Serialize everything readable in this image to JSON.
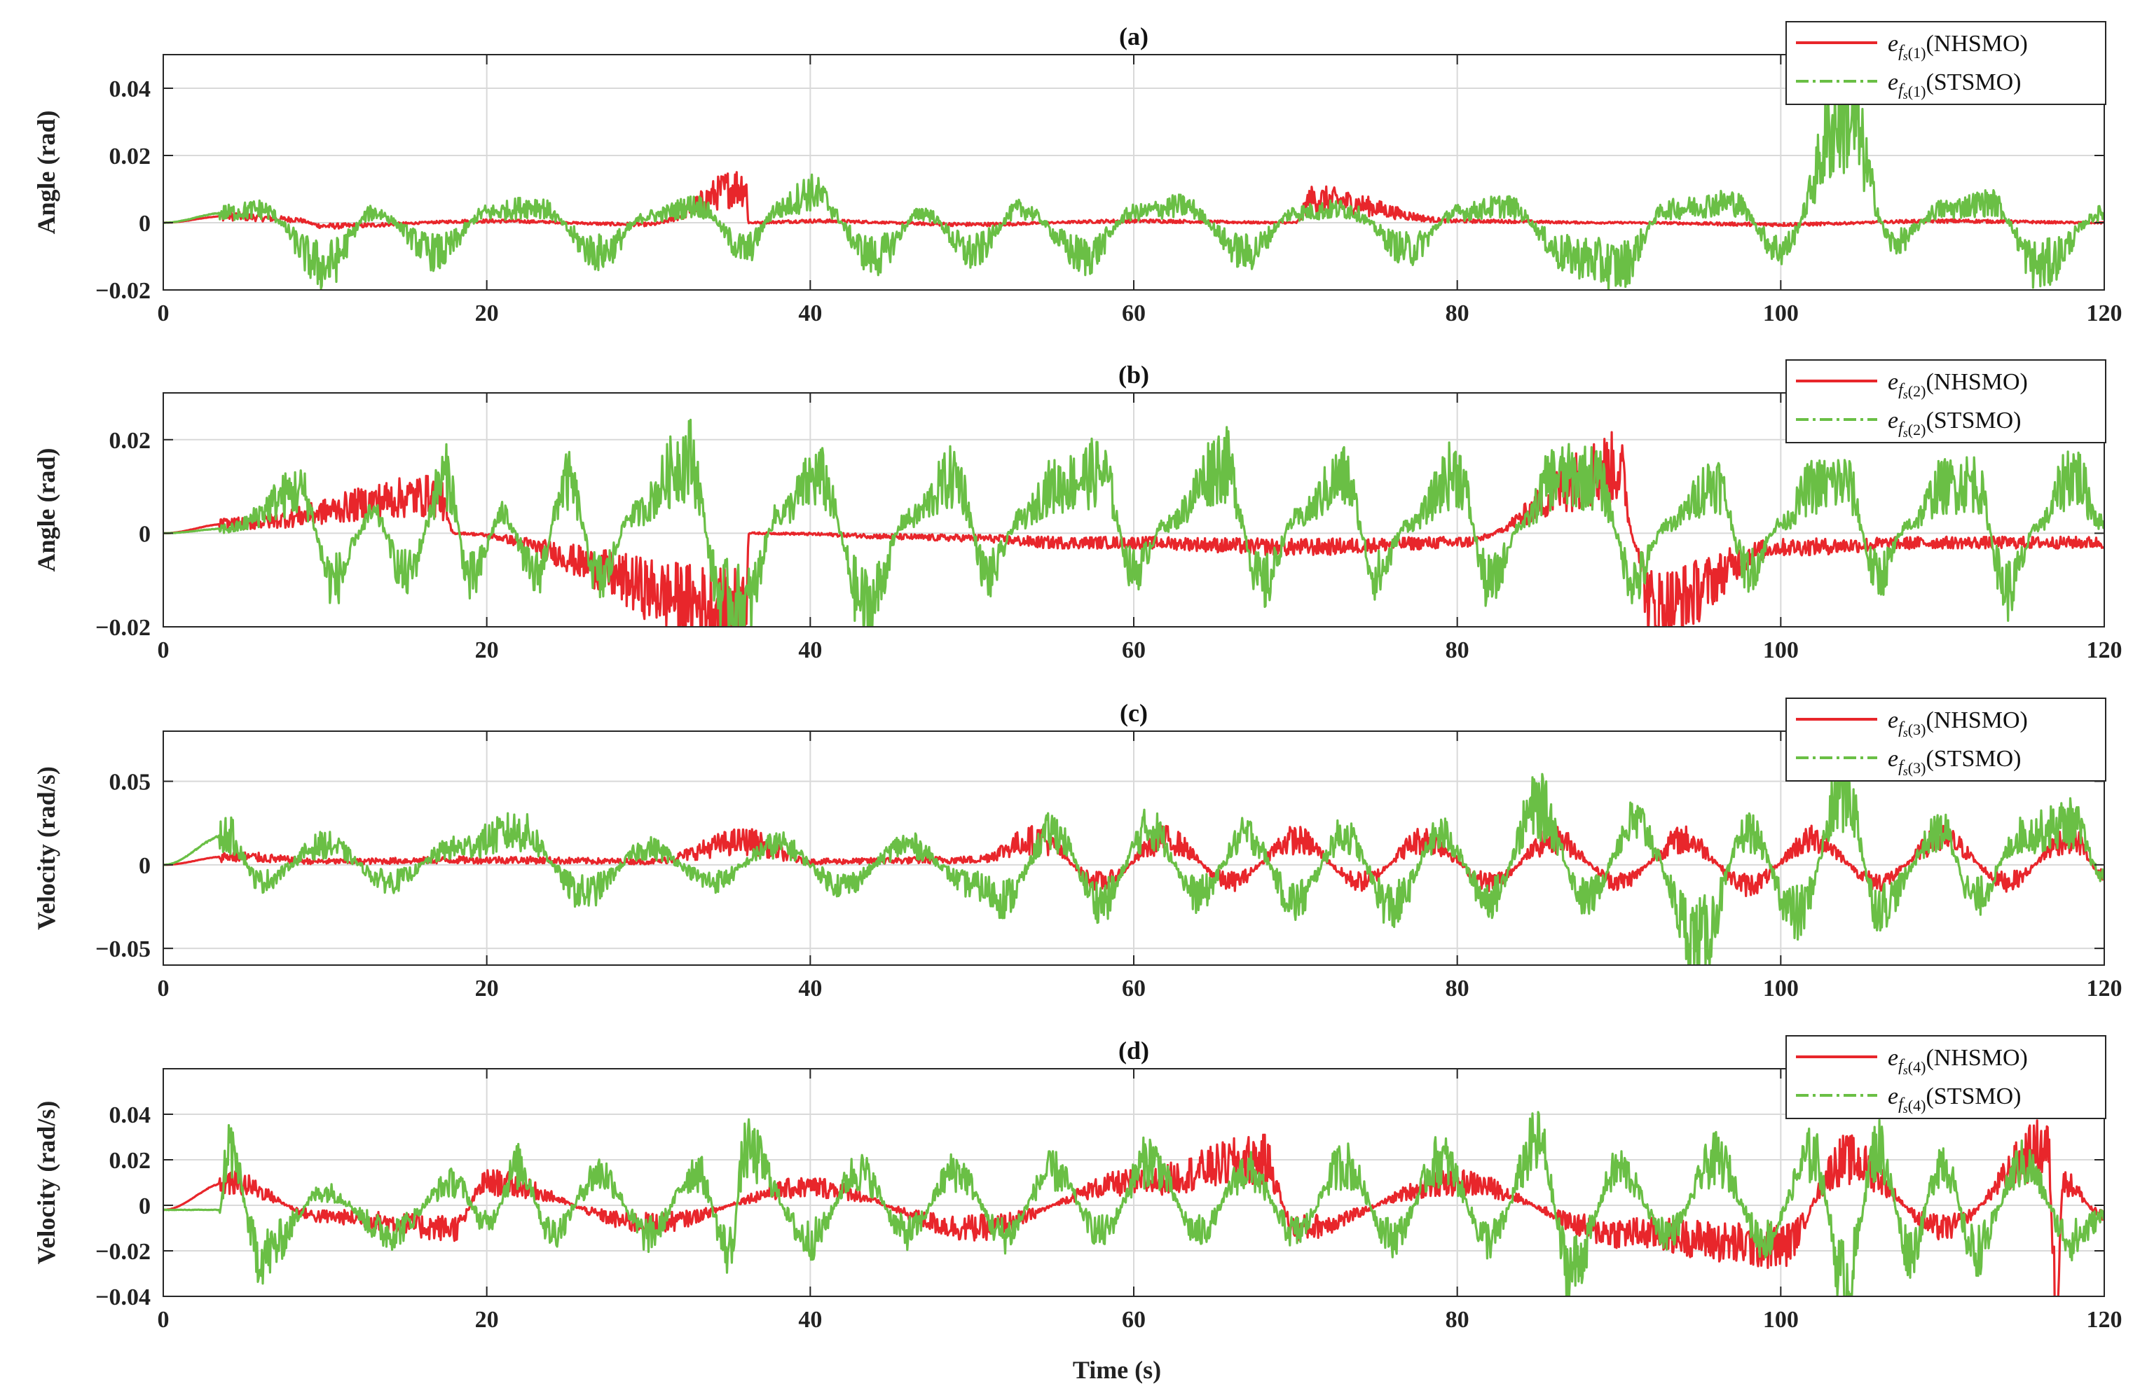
{
  "figure": {
    "xlabel": "Time (s)",
    "colors": {
      "nhsmo": "#e8262b",
      "stsmo": "#6abf45"
    }
  },
  "chart_data": [
    {
      "type": "line",
      "title": "(a)",
      "ylabel": "Angle (rad)",
      "xlabel": "",
      "xlim": [
        0,
        120
      ],
      "ylim": [
        -0.02,
        0.05
      ],
      "xticks": [
        "0",
        "20",
        "40",
        "60",
        "80",
        "100",
        "120"
      ],
      "yticks": [
        "0.04",
        "0.02",
        "0",
        "−0.02"
      ],
      "ytick_values": [
        0.04,
        0.02,
        0,
        -0.02
      ],
      "grid": true,
      "legend_position": "top-right",
      "legend": [
        {
          "base": "e",
          "sub": "f",
          "subsub": "s",
          "idx": "(1)",
          "label": "(NHSMO)"
        },
        {
          "base": "e",
          "sub": "f",
          "subsub": "s",
          "idx": "(1)",
          "label": "(STSMO)"
        }
      ],
      "series": [
        {
          "name": "NHSMO",
          "x": [
            0,
            4,
            8,
            10,
            20,
            30,
            36,
            36.2,
            40,
            50,
            60,
            70,
            71,
            80,
            90,
            100,
            110,
            120
          ],
          "values": [
            0,
            0.002,
            0.001,
            -0.001,
            0.0005,
            -0.0005,
            0.011,
            0,
            0.0005,
            -0.0005,
            0.0005,
            0,
            0.007,
            0.0005,
            0,
            -0.0005,
            0.0005,
            0
          ]
        },
        {
          "name": "STSMO",
          "x": [
            0,
            4,
            6,
            10,
            13,
            17,
            20,
            23,
            27,
            30,
            33,
            36,
            38,
            40,
            44,
            47,
            50,
            53,
            57,
            60,
            63,
            67,
            70,
            73,
            77,
            80,
            83,
            87,
            90,
            93,
            97,
            100,
            104,
            107,
            110,
            113,
            116,
            120
          ],
          "values": [
            0,
            0.003,
            0.004,
            -0.013,
            0.003,
            -0.009,
            0.003,
            0.005,
            -0.009,
            0.002,
            0.005,
            -0.008,
            0.004,
            0.009,
            -0.01,
            0.003,
            -0.009,
            0.004,
            -0.01,
            0.003,
            0.005,
            -0.009,
            0.003,
            0.004,
            -0.008,
            0.003,
            0.005,
            -0.01,
            -0.013,
            0.004,
            0.006,
            -0.008,
            0.032,
            -0.006,
            0.004,
            0.006,
            -0.013,
            0.003
          ]
        }
      ]
    },
    {
      "type": "line",
      "title": "(b)",
      "ylabel": "Angle (rad)",
      "xlabel": "",
      "xlim": [
        0,
        120
      ],
      "ylim": [
        -0.02,
        0.03
      ],
      "xticks": [
        "0",
        "20",
        "40",
        "60",
        "80",
        "100",
        "120"
      ],
      "yticks": [
        "0.02",
        "0",
        "−0.02"
      ],
      "ytick_values": [
        0.02,
        0,
        -0.02
      ],
      "grid": true,
      "legend_position": "top-right",
      "legend": [
        {
          "base": "e",
          "sub": "f",
          "subsub": "s",
          "idx": "(2)",
          "label": "(NHSMO)"
        },
        {
          "base": "e",
          "sub": "f",
          "subsub": "s",
          "idx": "(2)",
          "label": "(STSMO)"
        }
      ],
      "series": [
        {
          "name": "NHSMO",
          "x": [
            0,
            4,
            17,
            18,
            36,
            36.2,
            50,
            55,
            60,
            70,
            80,
            90,
            91,
            92,
            100,
            110,
            120
          ],
          "values": [
            0,
            0.002,
            0.008,
            0,
            -0.016,
            0,
            -0.001,
            -0.002,
            -0.002,
            -0.003,
            -0.002,
            0.014,
            -0.002,
            -0.016,
            -0.003,
            -0.002,
            -0.002
          ]
        },
        {
          "name": "STSMO",
          "x": [
            0,
            4,
            8.5,
            10.5,
            13,
            15,
            17.5,
            19,
            21,
            23,
            25,
            27,
            29,
            32.5,
            34.5,
            36,
            38,
            40.5,
            43.5,
            46,
            49,
            51,
            53,
            55,
            58,
            60,
            62,
            65.5,
            68,
            70,
            73,
            75,
            77,
            80,
            82,
            84,
            86,
            88.5,
            91,
            93,
            96,
            98,
            100,
            102,
            104,
            106,
            108,
            110,
            112,
            114,
            116,
            118,
            120
          ],
          "values": [
            0,
            0.001,
            0.009,
            -0.01,
            0.004,
            -0.009,
            0.012,
            -0.01,
            0.004,
            -0.009,
            0.011,
            -0.01,
            0.004,
            0.016,
            -0.013,
            -0.016,
            0.004,
            0.012,
            -0.016,
            0.003,
            0.012,
            -0.009,
            0.003,
            0.01,
            0.013,
            -0.008,
            0.002,
            0.015,
            -0.011,
            0.003,
            0.012,
            -0.009,
            0.002,
            0.013,
            -0.011,
            0.002,
            0.012,
            0.012,
            -0.01,
            0.002,
            0.011,
            -0.008,
            0.002,
            0.01,
            0.011,
            -0.009,
            0.002,
            0.01,
            0.011,
            -0.012,
            0.002,
            0.013,
            0.002
          ]
        }
      ]
    },
    {
      "type": "line",
      "title": "(c)",
      "ylabel": "Velocity (rad/s)",
      "xlabel": "",
      "xlim": [
        0,
        120
      ],
      "ylim": [
        -0.06,
        0.08
      ],
      "xticks": [
        "0",
        "20",
        "40",
        "60",
        "80",
        "100",
        "120"
      ],
      "yticks": [
        "0.05",
        "0",
        "−0.05"
      ],
      "ytick_values": [
        0.05,
        0,
        -0.05
      ],
      "grid": true,
      "legend_position": "top-right",
      "legend": [
        {
          "base": "e",
          "sub": "f",
          "subsub": "s",
          "idx": "(3)",
          "label": "(NHSMO)"
        },
        {
          "base": "e",
          "sub": "f",
          "subsub": "s",
          "idx": "(3)",
          "label": "(STSMO)"
        }
      ],
      "series": [
        {
          "name": "NHSMO",
          "x": [
            0,
            4,
            10,
            20,
            30,
            36,
            40,
            50,
            54,
            58,
            62,
            66,
            70,
            74,
            78,
            82,
            86,
            90,
            94,
            98,
            102,
            106,
            110,
            114,
            118,
            120
          ],
          "values": [
            0,
            0.005,
            0.002,
            0.003,
            0.002,
            0.014,
            0.002,
            0.003,
            0.015,
            -0.01,
            0.015,
            -0.01,
            0.015,
            -0.01,
            0.015,
            -0.01,
            0.015,
            -0.01,
            0.015,
            -0.012,
            0.015,
            -0.01,
            0.015,
            -0.01,
            0.016,
            -0.007
          ]
        },
        {
          "name": "STSMO",
          "x": [
            0,
            4,
            6,
            10,
            14,
            18,
            22,
            26,
            30,
            34,
            38,
            42,
            46,
            50,
            52,
            55,
            58,
            61,
            64,
            67,
            70,
            73,
            76,
            79,
            82,
            85,
            88,
            91,
            95,
            98,
            101,
            104,
            106,
            110,
            112,
            115,
            118,
            120
          ],
          "values": [
            0,
            0.018,
            -0.01,
            0.012,
            -0.01,
            0.01,
            0.02,
            -0.017,
            0.01,
            -0.01,
            0.012,
            -0.012,
            0.012,
            -0.012,
            -0.02,
            0.02,
            -0.022,
            0.022,
            -0.018,
            0.018,
            -0.022,
            0.018,
            -0.025,
            0.018,
            -0.02,
            0.035,
            -0.02,
            0.025,
            -0.045,
            0.02,
            -0.03,
            0.045,
            -0.025,
            0.02,
            -0.02,
            0.018,
            0.025,
            -0.008
          ]
        }
      ]
    },
    {
      "type": "line",
      "title": "(d)",
      "ylabel": "Velocity (rad/s)",
      "xlabel": "Time (s)",
      "xlim": [
        0,
        120
      ],
      "ylim": [
        -0.04,
        0.06
      ],
      "xticks": [
        "0",
        "20",
        "40",
        "60",
        "80",
        "100",
        "120"
      ],
      "yticks": [
        "0.04",
        "0.02",
        "0",
        "−0.02",
        "−0.04"
      ],
      "ytick_values": [
        0.04,
        0.02,
        0,
        -0.02,
        -0.04
      ],
      "grid": true,
      "legend_position": "top-right",
      "legend": [
        {
          "base": "e",
          "sub": "f",
          "subsub": "s",
          "idx": "(4)",
          "label": "(NHSMO)"
        },
        {
          "base": "e",
          "sub": "f",
          "subsub": "s",
          "idx": "(4)",
          "label": "(STSMO)"
        }
      ],
      "series": [
        {
          "name": "NHSMO",
          "x": [
            0,
            4,
            10,
            18,
            20,
            30,
            40,
            50,
            60,
            68,
            70,
            80,
            90,
            100,
            104,
            110,
            116.5,
            117,
            117.5,
            120
          ],
          "values": [
            -0.002,
            0.01,
            -0.005,
            -0.01,
            0.01,
            -0.008,
            0.008,
            -0.01,
            0.01,
            0.02,
            -0.01,
            0.01,
            -0.012,
            -0.018,
            0.02,
            -0.01,
            0.025,
            -0.038,
            0.01,
            -0.005
          ]
        },
        {
          "name": "STSMO",
          "x": [
            0,
            3.5,
            4,
            6,
            10,
            14,
            18,
            20,
            22,
            24,
            27,
            30,
            33,
            35,
            36,
            40,
            43,
            46,
            49,
            52,
            55,
            58,
            61,
            64,
            67,
            70,
            73,
            76,
            79,
            82,
            85,
            87,
            90,
            93,
            96,
            99,
            102,
            104,
            106,
            108,
            110,
            112,
            115,
            118,
            120
          ],
          "values": [
            -0.002,
            -0.002,
            0.026,
            -0.022,
            0.006,
            -0.012,
            0.01,
            -0.008,
            0.017,
            -0.012,
            0.014,
            -0.013,
            0.015,
            -0.02,
            0.024,
            -0.015,
            0.015,
            -0.012,
            0.015,
            -0.013,
            0.015,
            -0.012,
            0.02,
            -0.012,
            0.015,
            -0.012,
            0.018,
            -0.014,
            0.02,
            -0.015,
            0.027,
            -0.028,
            0.016,
            -0.012,
            0.02,
            -0.015,
            0.022,
            -0.034,
            0.025,
            -0.02,
            0.02,
            -0.02,
            0.018,
            -0.015,
            -0.005
          ]
        }
      ]
    }
  ]
}
